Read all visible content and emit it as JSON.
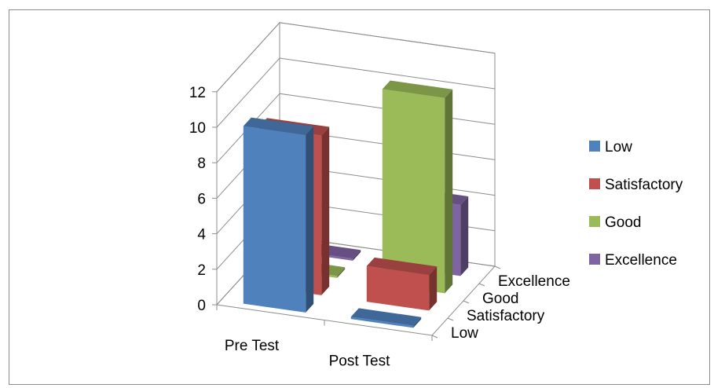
{
  "chart_data": {
    "type": "bar",
    "variant": "3d-column",
    "title": "",
    "xlabel": "",
    "ylabel": "",
    "categories": [
      "Pre Test",
      "Post Test"
    ],
    "depth_categories": [
      "Low",
      "Satisfactory",
      "Good",
      "Excellence"
    ],
    "series": [
      {
        "name": "Low",
        "color": "#4f81bd",
        "values": [
          10,
          0
        ]
      },
      {
        "name": "Satisfactory",
        "color": "#c0504d",
        "values": [
          9,
          2
        ]
      },
      {
        "name": "Good",
        "color": "#9bbb59",
        "values": [
          0,
          11
        ]
      },
      {
        "name": "Excellence",
        "color": "#8064a2",
        "values": [
          0,
          4
        ]
      }
    ],
    "ylim": [
      0,
      12
    ],
    "yticks": [
      "0",
      "2",
      "4",
      "6",
      "8",
      "10",
      "12"
    ],
    "grid": true,
    "legend_position": "right"
  }
}
